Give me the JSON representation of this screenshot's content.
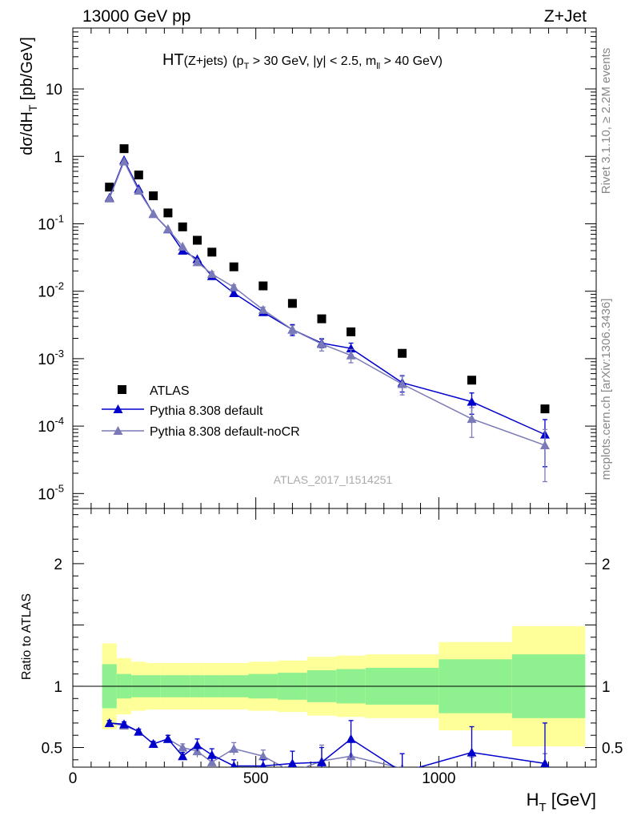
{
  "header": {
    "left": "13000 GeV pp",
    "right": "Z+Jet"
  },
  "side_labels": {
    "rivet": "Rivet 3.1.10, ≥ 2.2M events",
    "mcplots": "mcplots.cern.ch [arXiv:1306.3436]"
  },
  "plot_title": {
    "main": "HT",
    "sub": "(Z+jets)",
    "cut_pt": "(p",
    "cut_pt_sub": "T",
    "cut_rest": " > 30 GeV, |y| < 2.5, m",
    "cut_m_sub": "ll",
    "cut_end": " > 40 GeV)"
  },
  "analysis_id": "ATLAS_2017_I1514251",
  "legend": [
    {
      "label": "ATLAS",
      "marker": "square",
      "color": "#000000"
    },
    {
      "label": "Pythia 8.308 default",
      "marker": "triangle",
      "color": "#0000cc"
    },
    {
      "label": "Pythia 8.308 default-noCR",
      "marker": "triangle",
      "color": "#7a7ab8"
    }
  ],
  "chart_data": [
    {
      "type": "scatter",
      "panel": "main",
      "ylabel": "dσ/dH_T [pb/GeV]",
      "yscale": "log",
      "ylim": [
        6e-06,
        80
      ],
      "xlim": [
        0,
        1430
      ],
      "yticks": [
        {
          "v": 1e-05,
          "base": "10",
          "exp": "-5"
        },
        {
          "v": 0.0001,
          "base": "10",
          "exp": "-4"
        },
        {
          "v": 0.001,
          "base": "10",
          "exp": "-3"
        },
        {
          "v": 0.01,
          "base": "10",
          "exp": "-2"
        },
        {
          "v": 0.1,
          "base": "10",
          "exp": "-1"
        },
        {
          "v": 1,
          "base": "1",
          "exp": ""
        },
        {
          "v": 10,
          "base": "10",
          "exp": ""
        }
      ],
      "x": [
        100,
        140,
        180,
        220,
        260,
        300,
        340,
        380,
        440,
        520,
        600,
        680,
        760,
        900,
        1090,
        1290
      ],
      "series": [
        {
          "name": "ATLAS",
          "color": "#000000",
          "marker": "square",
          "values": [
            0.35,
            1.3,
            0.53,
            0.26,
            0.145,
            0.09,
            0.057,
            0.038,
            0.023,
            0.012,
            0.0066,
            0.0039,
            0.0025,
            0.0012,
            0.00048,
            0.00018
          ]
        },
        {
          "name": "Pythia 8.308 default",
          "color": "#0000cc",
          "marker": "triangle",
          "values": [
            0.245,
            0.88,
            0.33,
            0.14,
            0.083,
            0.04,
            0.03,
            0.0168,
            0.0094,
            0.0049,
            0.0027,
            0.0017,
            0.00142,
            0.00044,
            0.00023,
            7.5e-05
          ],
          "errors": [
            0.005,
            0.02,
            0.01,
            0.005,
            0.004,
            0.003,
            0.002,
            0.0015,
            0.0008,
            0.0004,
            0.0005,
            0.00025,
            0.00028,
            0.00012,
            8e-05,
            5e-05
          ]
        },
        {
          "name": "Pythia 8.308 default-noCR",
          "color": "#7a7ab8",
          "marker": "triangle",
          "values": [
            0.238,
            0.84,
            0.31,
            0.14,
            0.084,
            0.046,
            0.027,
            0.018,
            0.0115,
            0.0053,
            0.0027,
            0.00165,
            0.00112,
            0.00042,
            0.000128,
            5.2e-05
          ],
          "errors": [
            0.005,
            0.02,
            0.01,
            0.005,
            0.004,
            0.003,
            0.002,
            0.0015,
            0.0009,
            0.0005,
            0.0004,
            0.00035,
            0.00025,
            0.00013,
            6e-05,
            3.7e-05
          ]
        }
      ]
    },
    {
      "type": "line",
      "panel": "ratio",
      "ylabel": "Ratio to ATLAS",
      "xlabel": "H_T [GeV]",
      "ylim": [
        0.34,
        2.45
      ],
      "xlim": [
        0,
        1430
      ],
      "yticks": [
        0.5,
        1,
        2
      ],
      "xticks": [
        0,
        500,
        1000
      ],
      "bins": [
        [
          80,
          120
        ],
        [
          120,
          160
        ],
        [
          160,
          200
        ],
        [
          200,
          240
        ],
        [
          240,
          280
        ],
        [
          280,
          320
        ],
        [
          320,
          360
        ],
        [
          360,
          400
        ],
        [
          400,
          480
        ],
        [
          480,
          560
        ],
        [
          560,
          640
        ],
        [
          640,
          720
        ],
        [
          720,
          800
        ],
        [
          800,
          1000
        ],
        [
          1000,
          1200
        ],
        [
          1200,
          1400
        ]
      ],
      "band_stat": [
        0.18,
        0.1,
        0.09,
        0.09,
        0.09,
        0.09,
        0.09,
        0.09,
        0.09,
        0.1,
        0.11,
        0.13,
        0.14,
        0.15,
        0.22,
        0.26
      ],
      "band_total": [
        0.35,
        0.23,
        0.2,
        0.19,
        0.19,
        0.19,
        0.19,
        0.19,
        0.19,
        0.2,
        0.21,
        0.24,
        0.25,
        0.26,
        0.36,
        0.49
      ],
      "x": [
        100,
        140,
        180,
        220,
        260,
        300,
        340,
        380,
        440,
        520,
        600,
        680,
        760,
        900,
        1090,
        1290
      ],
      "series": [
        {
          "name": "Pythia 8.308 default",
          "color": "#0000cc",
          "marker": "triangle",
          "values": [
            0.7,
            0.69,
            0.63,
            0.53,
            0.57,
            0.43,
            0.52,
            0.44,
            0.35,
            0.35,
            0.37,
            0.38,
            0.57,
            0.3,
            0.46,
            0.37
          ],
          "errors": [
            0.02,
            0.02,
            0.02,
            0.02,
            0.03,
            0.03,
            0.05,
            0.05,
            0.05,
            0.05,
            0.1,
            0.12,
            0.15,
            0.15,
            0.21,
            0.33
          ]
        },
        {
          "name": "Pythia 8.308 default-noCR",
          "color": "#7a7ab8",
          "marker": "triangle",
          "values": [
            0.7,
            0.68,
            0.63,
            0.53,
            0.57,
            0.5,
            0.47,
            0.38,
            0.49,
            0.43,
            0.3,
            0.39,
            0.43,
            0.33,
            0.27,
            0.25
          ],
          "errors": [
            0.02,
            0.02,
            0.02,
            0.02,
            0.03,
            0.03,
            0.05,
            0.05,
            0.05,
            0.05,
            0.08,
            0.13,
            0.12,
            0.12,
            0.15,
            0.2
          ]
        }
      ]
    }
  ]
}
